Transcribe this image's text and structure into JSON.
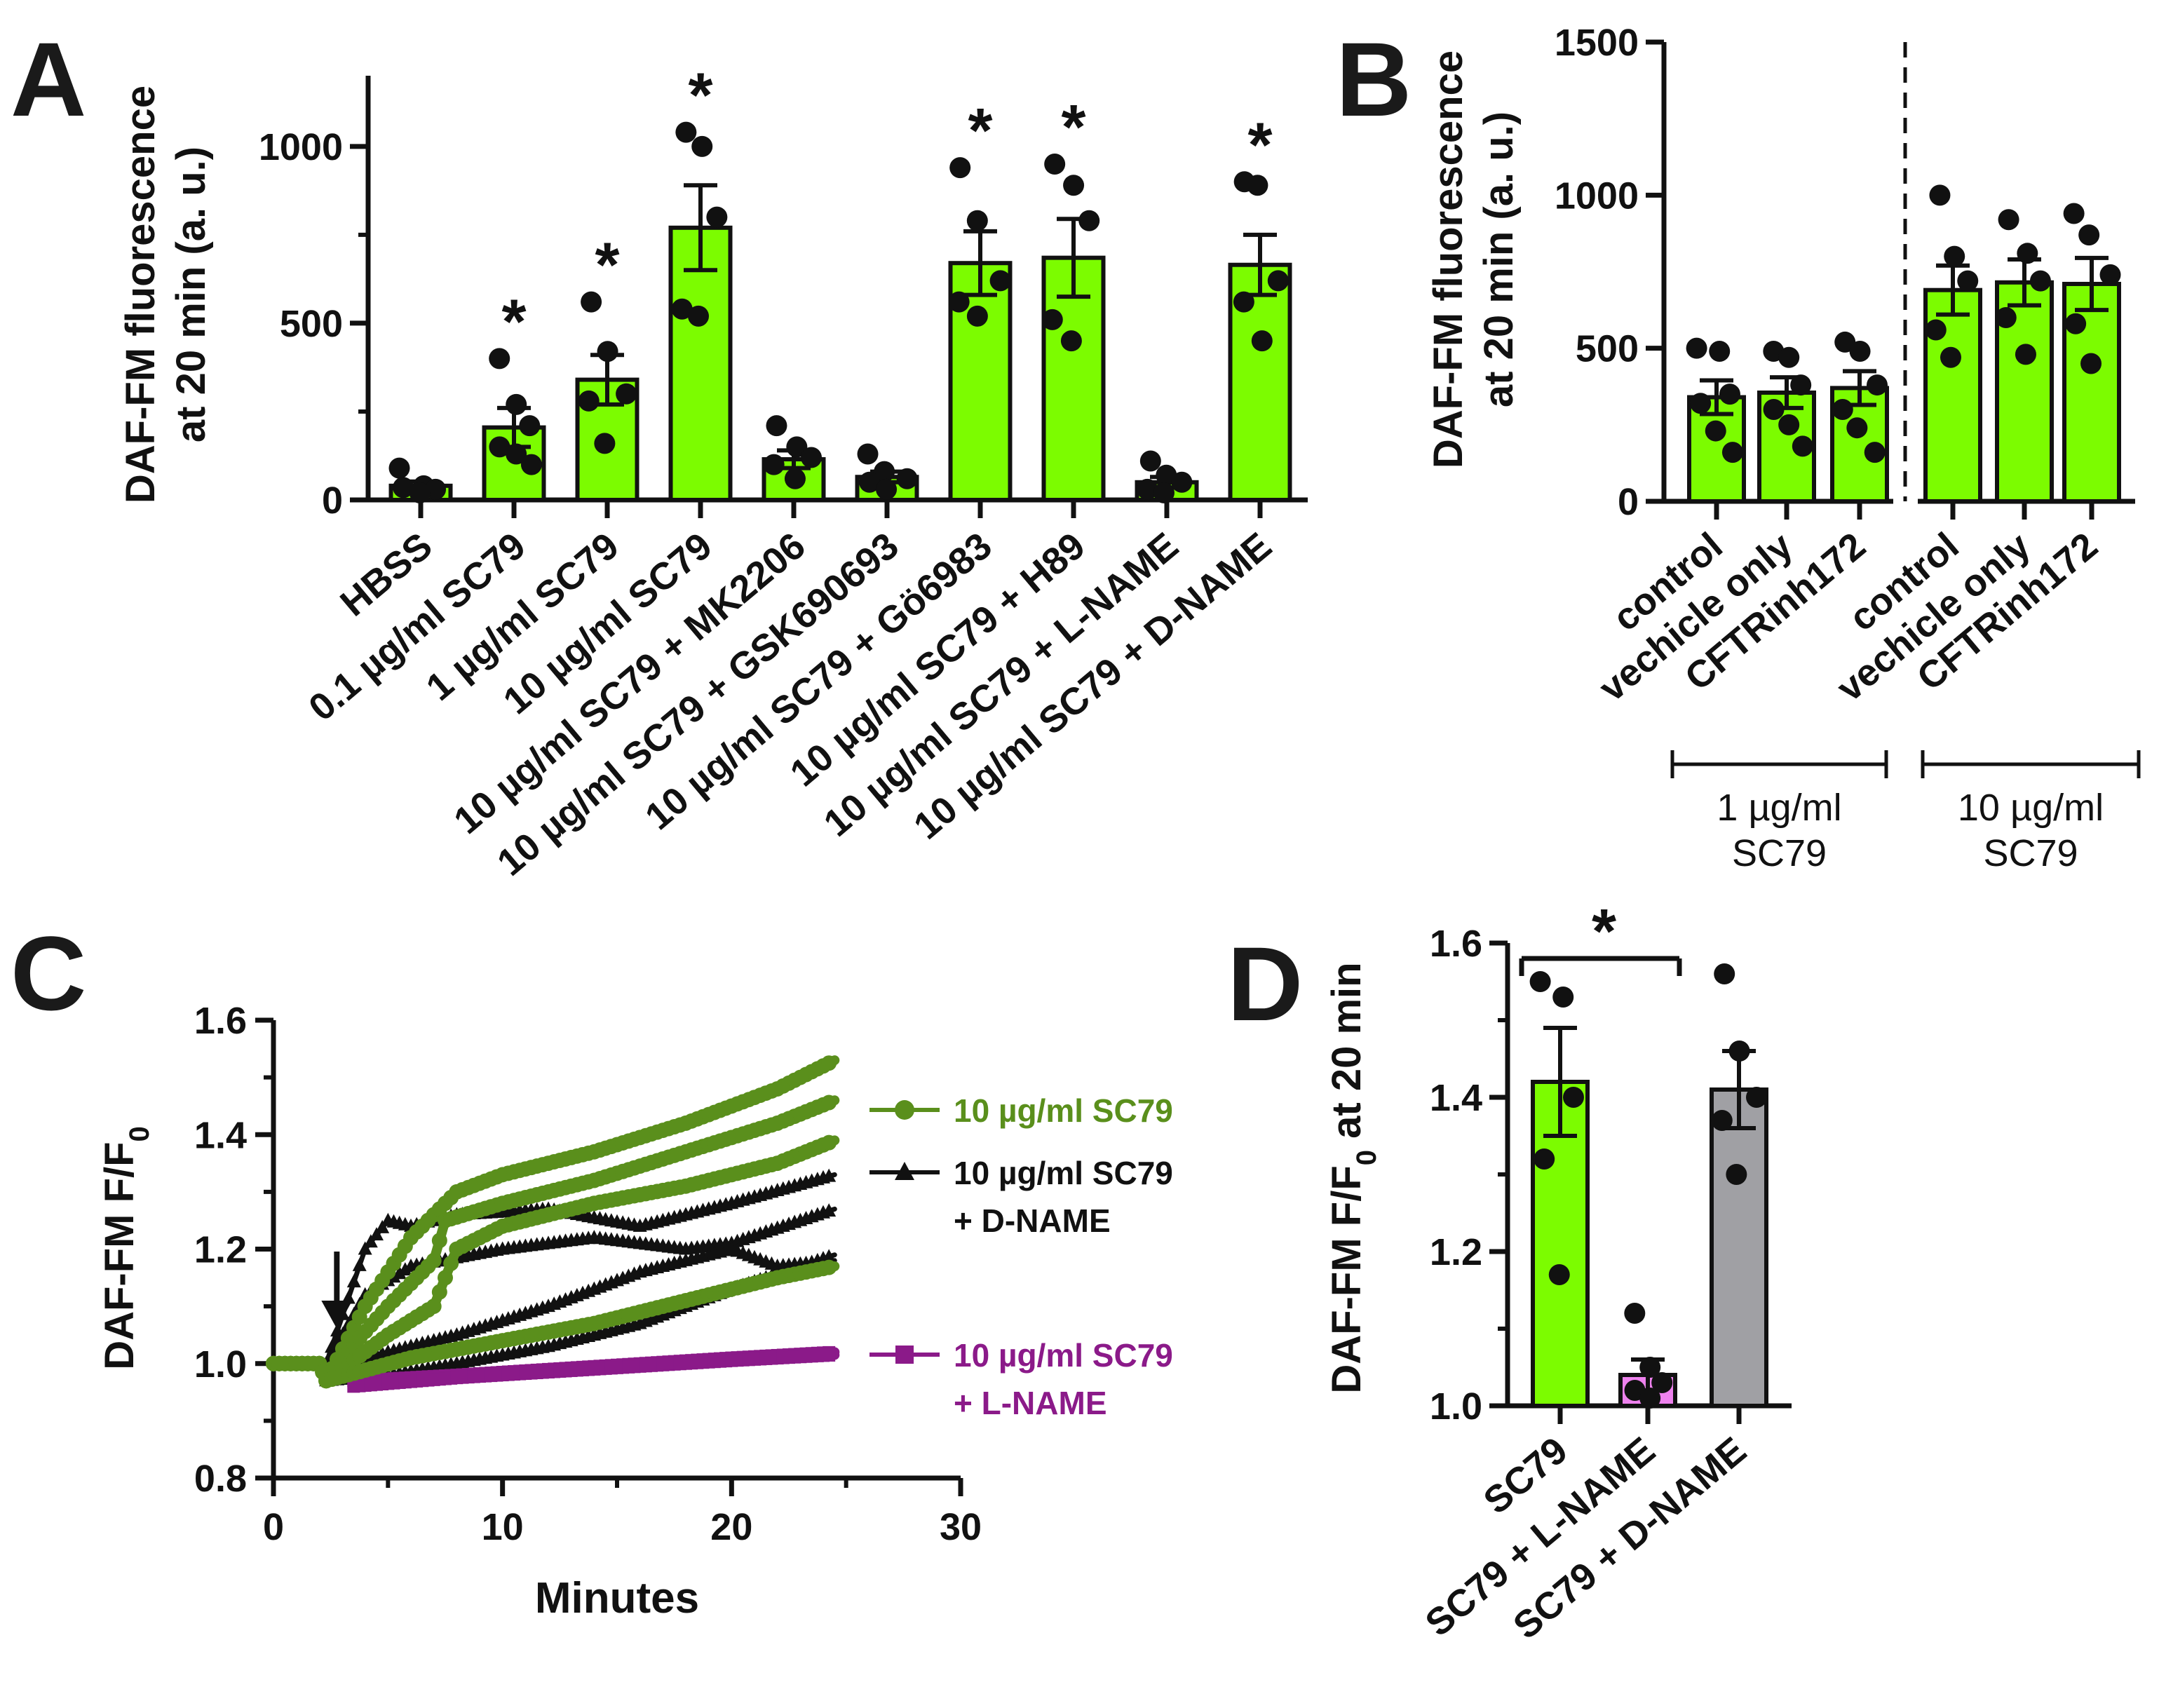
{
  "colors": {
    "bright_green": "#7cfc00",
    "dark_green": "#5a8f1c",
    "purple": "#8b1a89",
    "pink": "#ee82ee",
    "gray": "#a0a0a4",
    "black": "#111111"
  },
  "chart_data": [
    {
      "panel": "A",
      "type": "bar",
      "ylabel": [
        "DAF-FM fluorescence",
        "at 20 min (a. u.)"
      ],
      "ylim": [
        0,
        1200
      ],
      "yticks": [
        0,
        500,
        1000
      ],
      "categories": [
        "HBSS",
        "0.1 µg/ml SC79",
        "1 µg/ml SC79",
        "10 µg/ml SC79",
        "10 µg/ml SC79 + MK2206",
        "10 µg/ml SC79 + GSK690693",
        "10 µg/ml SC79 + Gö6983",
        "10 µg/ml SC79 + H89",
        "10 µg/ml SC79 + L-NAME",
        "10 µg/ml SC79 + D-NAME"
      ],
      "values": [
        40,
        205,
        340,
        770,
        115,
        65,
        670,
        685,
        50,
        665
      ],
      "sem": [
        12,
        55,
        70,
        120,
        25,
        15,
        90,
        110,
        15,
        85
      ],
      "points": [
        [
          90,
          40,
          30,
          35,
          20
        ],
        [
          400,
          270,
          210,
          150,
          130,
          100
        ],
        [
          560,
          420,
          300,
          280,
          160
        ],
        [
          1040,
          1000,
          800,
          540,
          520
        ],
        [
          210,
          150,
          120,
          100,
          60
        ],
        [
          130,
          80,
          60,
          50,
          30
        ],
        [
          940,
          790,
          620,
          560,
          520
        ],
        [
          950,
          890,
          790,
          510,
          450
        ],
        [
          110,
          70,
          50,
          30,
          20
        ],
        [
          900,
          890,
          620,
          560,
          450
        ]
      ],
      "significant": [
        false,
        true,
        true,
        true,
        false,
        false,
        true,
        true,
        false,
        true
      ],
      "sig_label": "*"
    },
    {
      "panel": "B",
      "type": "bar",
      "ylabel": [
        "DAF-FM fluorescence",
        "at 20 min (a. u.)"
      ],
      "ylim": [
        0,
        1500
      ],
      "yticks": [
        0,
        500,
        1000,
        1500
      ],
      "categories": [
        "control",
        "vechicle only",
        "CFTRinh172",
        "control",
        "vechicle only",
        "CFTRinh172"
      ],
      "values": [
        340,
        355,
        370,
        690,
        715,
        710
      ],
      "sem": [
        55,
        50,
        55,
        80,
        75,
        85
      ],
      "points": [
        [
          500,
          490,
          350,
          320,
          230,
          160
        ],
        [
          490,
          470,
          380,
          300,
          250,
          180
        ],
        [
          520,
          490,
          380,
          300,
          240,
          160
        ],
        [
          1000,
          800,
          720,
          560,
          470
        ],
        [
          920,
          810,
          720,
          600,
          480
        ],
        [
          940,
          870,
          740,
          580,
          450
        ]
      ],
      "groups": [
        {
          "label": [
            "1 µg/ml",
            "SC79"
          ]
        },
        {
          "label": [
            "10 µg/ml",
            "SC79"
          ]
        }
      ]
    },
    {
      "panel": "C",
      "type": "line",
      "xlabel": "Minutes",
      "ylabel_main": "DAF-FM F/F",
      "ylabel_sub": "0",
      "xlim": [
        0,
        30
      ],
      "ylim": [
        0.8,
        1.6
      ],
      "xticks": [
        0,
        10,
        20,
        30
      ],
      "yticks": [
        "0.8",
        "1.0",
        "1.2",
        "1.4",
        "1.6"
      ],
      "stimulus_time": 2,
      "series": [
        {
          "name": "10 µg/ml SC79",
          "color": "#5a8f1c",
          "marker": "circle",
          "traces": [
            [
              [
                0,
                1.0
              ],
              [
                2,
                1.0
              ],
              [
                2.3,
                0.97
              ],
              [
                4,
                1.1
              ],
              [
                6,
                1.22
              ],
              [
                8,
                1.3
              ],
              [
                10,
                1.33
              ],
              [
                14,
                1.37
              ],
              [
                18,
                1.42
              ],
              [
                22,
                1.48
              ],
              [
                24.5,
                1.53
              ]
            ],
            [
              [
                0,
                1.0
              ],
              [
                2,
                1.0
              ],
              [
                2.3,
                0.98
              ],
              [
                5,
                1.1
              ],
              [
                7,
                1.18
              ],
              [
                7.5,
                1.25
              ],
              [
                10,
                1.28
              ],
              [
                14,
                1.32
              ],
              [
                18,
                1.37
              ],
              [
                22,
                1.42
              ],
              [
                24.5,
                1.46
              ]
            ],
            [
              [
                0,
                1.0
              ],
              [
                2,
                1.0
              ],
              [
                2.3,
                0.97
              ],
              [
                5,
                1.05
              ],
              [
                7,
                1.1
              ],
              [
                8,
                1.2
              ],
              [
                10,
                1.24
              ],
              [
                14,
                1.28
              ],
              [
                18,
                1.31
              ],
              [
                22,
                1.35
              ],
              [
                24.5,
                1.39
              ]
            ],
            [
              [
                0,
                1.0
              ],
              [
                2,
                1.0
              ],
              [
                2.3,
                0.97
              ],
              [
                6,
                1.01
              ],
              [
                10,
                1.04
              ],
              [
                14,
                1.07
              ],
              [
                18,
                1.11
              ],
              [
                22,
                1.15
              ],
              [
                24.5,
                1.17
              ]
            ]
          ]
        },
        {
          "name": "10 µg/ml SC79 + D-NAME",
          "name_lines": [
            "10 µg/ml SC79",
            "+ D-NAME"
          ],
          "color": "#111111",
          "marker": "triangle",
          "traces": [
            [
              [
                2.3,
                1.0
              ],
              [
                4,
                1.2
              ],
              [
                5,
                1.25
              ],
              [
                6,
                1.24
              ],
              [
                8,
                1.26
              ],
              [
                12,
                1.27
              ],
              [
                16,
                1.24
              ],
              [
                20,
                1.28
              ],
              [
                24.5,
                1.33
              ]
            ],
            [
              [
                2.3,
                1.0
              ],
              [
                4,
                1.12
              ],
              [
                6,
                1.17
              ],
              [
                10,
                1.2
              ],
              [
                14,
                1.22
              ],
              [
                18,
                1.2
              ],
              [
                20,
                1.21
              ],
              [
                24.5,
                1.27
              ]
            ],
            [
              [
                2.3,
                0.98
              ],
              [
                4,
                1.01
              ],
              [
                8,
                1.05
              ],
              [
                12,
                1.1
              ],
              [
                16,
                1.16
              ],
              [
                18,
                1.18
              ],
              [
                20,
                1.2
              ],
              [
                22,
                1.17
              ],
              [
                24.5,
                1.18
              ]
            ],
            [
              [
                2.3,
                0.97
              ],
              [
                5,
                0.98
              ],
              [
                8,
                1.0
              ],
              [
                12,
                1.03
              ],
              [
                16,
                1.07
              ],
              [
                20,
                1.13
              ],
              [
                24.5,
                1.19
              ]
            ]
          ]
        },
        {
          "name": "10 µg/ml SC79 + L-NAME",
          "name_lines": [
            "10 µg/ml SC79",
            "+ L-NAME"
          ],
          "color": "#8b1a89",
          "marker": "square",
          "traces": [
            [
              [
                3.5,
                0.97
              ],
              [
                8,
                0.98
              ],
              [
                12,
                0.99
              ],
              [
                16,
                1.0
              ],
              [
                20,
                1.01
              ],
              [
                24.5,
                1.02
              ]
            ],
            [
              [
                3.5,
                0.96
              ],
              [
                8,
                0.975
              ],
              [
                12,
                0.985
              ],
              [
                16,
                0.995
              ],
              [
                20,
                1.005
              ],
              [
                24.5,
                1.015
              ]
            ]
          ]
        }
      ]
    },
    {
      "panel": "D",
      "type": "bar",
      "ylabel_main": "DAF-FM F/F",
      "ylabel_sub": "0",
      "ylabel_tail": " at 20 min",
      "ylim": [
        1.0,
        1.6
      ],
      "yticks": [
        "1.0",
        "1.2",
        "1.4",
        "1.6"
      ],
      "categories": [
        "SC79",
        "SC79 + L-NAME",
        "SC79 + D-NAME"
      ],
      "values": [
        1.42,
        1.04,
        1.41
      ],
      "sem": [
        0.07,
        0.02,
        0.05
      ],
      "points": [
        [
          1.55,
          1.53,
          1.4,
          1.32,
          1.17
        ],
        [
          1.12,
          1.05,
          1.03,
          1.02,
          1.01
        ],
        [
          1.56,
          1.46,
          1.4,
          1.37,
          1.3
        ]
      ],
      "bar_colors": [
        "#7cfc00",
        "#ee82ee",
        "#a0a0a4"
      ],
      "comparison": {
        "from": 0,
        "to": 1,
        "label": "*"
      }
    }
  ]
}
